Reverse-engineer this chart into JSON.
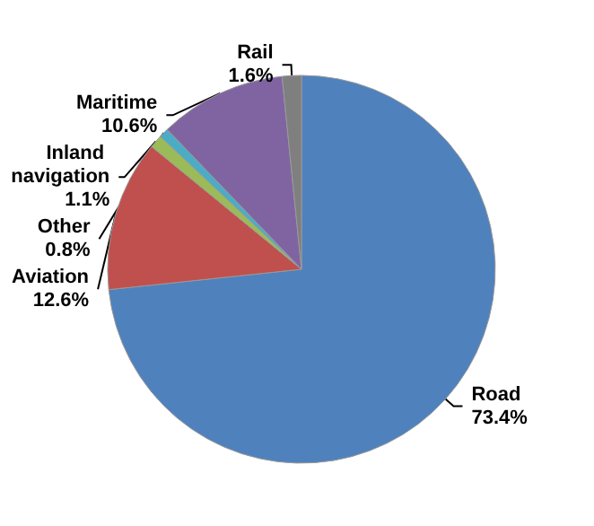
{
  "chart_data": {
    "type": "pie",
    "categories": [
      "Road",
      "Aviation",
      "Inland navigation",
      "Other",
      "Maritime",
      "Rail"
    ],
    "values": [
      73.4,
      12.6,
      1.1,
      0.8,
      10.6,
      1.6
    ],
    "value_labels": [
      "73.4%",
      "12.6%",
      "1.1%",
      "0.8%",
      "10.6%",
      "1.6%"
    ],
    "colors": [
      "#4f81bd",
      "#c0504d",
      "#9bbb59",
      "#4bacc6",
      "#8064a2",
      "#7f7f7f"
    ],
    "legend": false
  }
}
